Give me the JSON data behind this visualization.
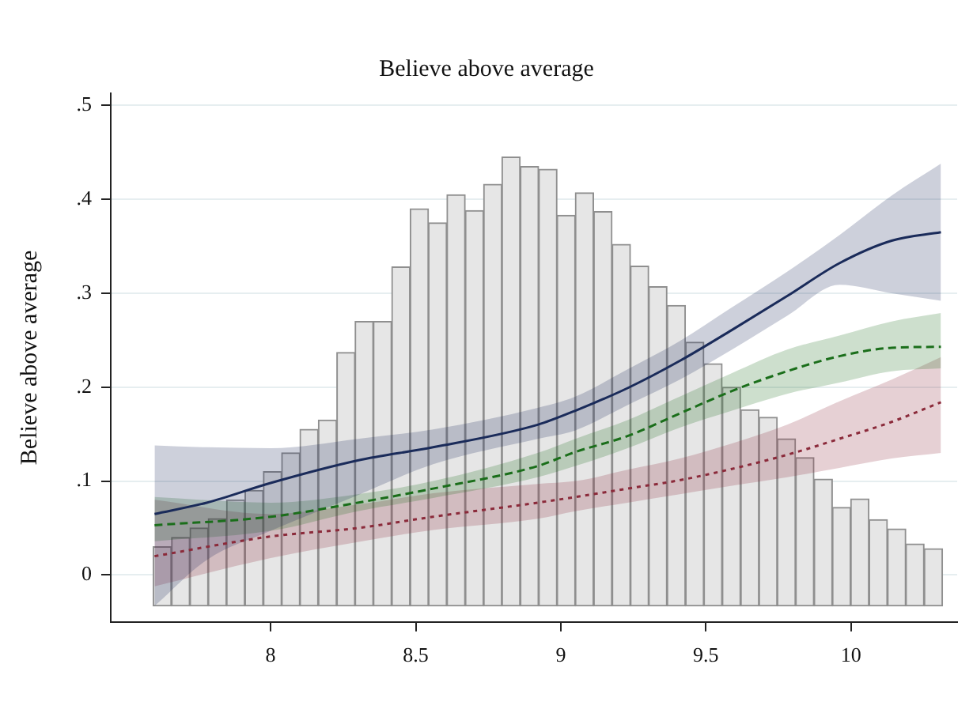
{
  "chart_data": {
    "type": "line",
    "title": "Believe above average",
    "ylabel": "Believe above average",
    "xlim": [
      7.449,
      10.366
    ],
    "xticks": [
      8,
      8.5,
      9,
      9.5,
      10
    ],
    "ylim": [
      -0.05,
      0.513
    ],
    "yticks": [
      0,
      {
        "value": 0.1,
        "label": ".1"
      },
      {
        "value": 0.2,
        "label": ".2"
      },
      {
        "value": 0.3,
        "label": ".3"
      },
      {
        "value": 0.4,
        "label": ".4"
      },
      {
        "value": 0.5,
        "label": ".5"
      }
    ],
    "grid": "y",
    "legend": false,
    "series": [
      {
        "type": "histogram",
        "color": "#e6e6e6",
        "bins": [
          7.595,
          7.658,
          7.722,
          7.785,
          7.848,
          7.911,
          7.975,
          8.038,
          8.101,
          8.164,
          8.228,
          8.291,
          8.354,
          8.417,
          8.481,
          8.544,
          8.607,
          8.671,
          8.734,
          8.797,
          8.86,
          8.924,
          8.987,
          9.05,
          9.113,
          9.177,
          9.24,
          9.303,
          9.366,
          9.43,
          9.493,
          9.556,
          9.62,
          9.683,
          9.746,
          9.809,
          9.873,
          9.936,
          9.999,
          10.062,
          10.126,
          10.189,
          10.252,
          10.316
        ],
        "values": [
          0.063,
          0.073,
          0.083,
          0.093,
          0.113,
          0.123,
          0.143,
          0.163,
          0.188,
          0.198,
          0.27,
          0.303,
          0.303,
          0.361,
          0.423,
          0.408,
          0.438,
          0.421,
          0.449,
          0.478,
          0.468,
          0.465,
          0.416,
          0.44,
          0.42,
          0.385,
          0.362,
          0.34,
          0.32,
          0.281,
          0.258,
          0.233,
          0.209,
          0.201,
          0.178,
          0.158,
          0.135,
          0.105,
          0.114,
          0.092,
          0.082,
          0.066,
          0.061
        ],
        "base": [
          -0.033,
          -0.033,
          -0.033,
          -0.033,
          -0.033,
          -0.033,
          -0.033,
          -0.033,
          -0.033,
          -0.033,
          -0.033,
          -0.033,
          -0.033,
          -0.033,
          -0.033,
          -0.033,
          -0.033,
          -0.033,
          -0.033,
          -0.033,
          -0.033,
          -0.033,
          -0.033,
          -0.033,
          -0.033,
          -0.033,
          -0.033,
          -0.033,
          -0.033,
          -0.033,
          -0.033,
          -0.033,
          -0.033,
          -0.033,
          -0.033,
          -0.033,
          -0.033,
          -0.033,
          -0.033,
          -0.033,
          -0.033,
          -0.033,
          -0.033
        ]
      },
      {
        "color": "#1a2b5a",
        "line_style": "solid",
        "x": [
          7.6,
          7.78,
          8.0,
          8.3,
          8.56,
          8.92,
          9.05,
          9.23,
          9.41,
          9.59,
          9.78,
          9.96,
          10.14,
          10.31
        ],
        "values": [
          0.065,
          0.077,
          0.098,
          0.122,
          0.136,
          0.16,
          0.175,
          0.199,
          0.228,
          0.261,
          0.297,
          0.332,
          0.356,
          0.365
        ],
        "upper": [
          0.138,
          0.136,
          0.135,
          0.145,
          0.155,
          0.178,
          0.19,
          0.219,
          0.249,
          0.285,
          0.323,
          0.362,
          0.404,
          0.438
        ],
        "lower": [
          -0.033,
          0.016,
          0.047,
          0.085,
          0.118,
          0.145,
          0.154,
          0.181,
          0.208,
          0.24,
          0.276,
          0.309,
          0.3,
          0.292
        ]
      },
      {
        "color": "#1a6e1a",
        "line_style": "dashed",
        "x": [
          7.6,
          8.0,
          8.3,
          8.56,
          8.92,
          9.05,
          9.23,
          9.41,
          9.59,
          9.78,
          9.96,
          10.14,
          10.31
        ],
        "values": [
          0.053,
          0.062,
          0.077,
          0.092,
          0.116,
          0.131,
          0.148,
          0.172,
          0.196,
          0.217,
          0.233,
          0.242,
          0.243
        ],
        "upper": [
          0.083,
          0.077,
          0.086,
          0.1,
          0.13,
          0.145,
          0.165,
          0.19,
          0.215,
          0.24,
          0.255,
          0.27,
          0.279
        ],
        "lower": [
          0.036,
          0.047,
          0.068,
          0.082,
          0.104,
          0.116,
          0.135,
          0.157,
          0.175,
          0.193,
          0.205,
          0.217,
          0.22
        ]
      },
      {
        "color": "#8b2a3a",
        "line_style": "dotted",
        "x": [
          7.6,
          8.0,
          8.3,
          8.56,
          8.92,
          9.05,
          9.23,
          9.41,
          9.59,
          9.78,
          9.96,
          10.14,
          10.31
        ],
        "values": [
          0.02,
          0.041,
          0.05,
          0.062,
          0.077,
          0.083,
          0.092,
          0.101,
          0.113,
          0.128,
          0.145,
          0.163,
          0.184
        ],
        "upper": [
          0.08,
          0.065,
          0.075,
          0.087,
          0.097,
          0.1,
          0.112,
          0.124,
          0.14,
          0.16,
          0.185,
          0.208,
          0.232
        ],
        "lower": [
          -0.012,
          0.018,
          0.035,
          0.048,
          0.06,
          0.068,
          0.077,
          0.086,
          0.095,
          0.104,
          0.114,
          0.124,
          0.13
        ]
      }
    ]
  }
}
